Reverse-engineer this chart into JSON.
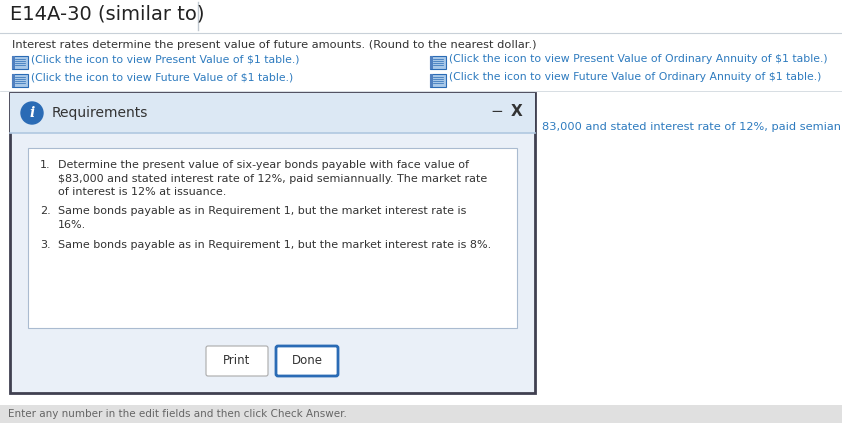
{
  "title": "E14A-30 (similar to)",
  "subtitle": "Interest rates determine the present value of future amounts. (Round to the nearest dollar.)",
  "link1": "(Click the icon to view Present Value of $1 table.)",
  "link2": "(Click the icon to view Present Value of Ordinary Annuity of $1 table.)",
  "link3": "(Click the icon to view Future Value of $1 table.)",
  "link4": "(Click the icon to view Future Value of Ordinary Annuity of $1 table.)",
  "dialog_title": "Requirements",
  "req1_num": "1.",
  "req1_text": "Determine the present value of six-year bonds payable with face value of\n$83,000 and stated interest rate of 12%, paid semiannually. The market rate\nof interest is 12% at issuance.",
  "req2_num": "2.",
  "req2_text": "Same bonds payable as in Requirement 1, but the market interest rate is\n16%.",
  "req3_num": "3.",
  "req3_text": "Same bonds payable as in Requirement 1, but the market interest rate is 8%.",
  "side_text": "83,000 and stated interest rate of 12%, paid semian",
  "bottom_text": "Enter any number in the edit fields and then click Check Answer.",
  "white": "#ffffff",
  "page_bg": "#f5f5f5",
  "dialog_body_bg": "#eaf0f8",
  "dialog_header_bg": "#dce8f4",
  "link_color": "#2e7bbf",
  "text_color": "#333333",
  "side_text_color": "#2e7bbf",
  "title_color": "#222222",
  "dialog_border": "#7090b0",
  "inner_border": "#aabbd0",
  "done_border": "#2a6bb5",
  "print_border": "#aaaaaa",
  "icon_blue": "#2a6bb5",
  "icon_bg": "#5090d0",
  "bottom_bar_bg": "#e0e0e0",
  "bottom_text_color": "#666666",
  "header_sep": "#b0c8e0",
  "title_line_color": "#c0c8d0",
  "horiz_line_color": "#c8d0d8"
}
